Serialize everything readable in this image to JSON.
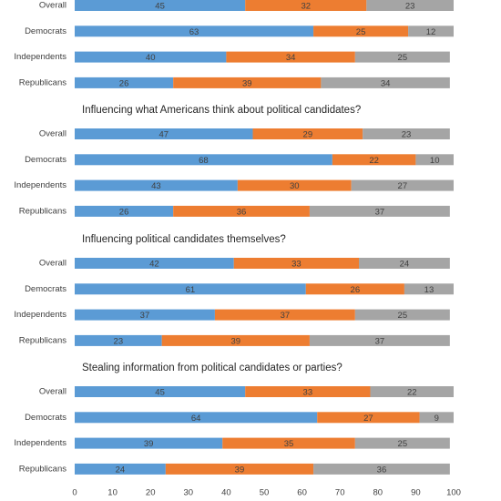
{
  "chart_data": [
    {
      "type": "bar",
      "orientation": "horizontal",
      "stacked": true,
      "categories": [
        "Overall",
        "Democrats",
        "Independents",
        "Republicans"
      ],
      "series": [
        {
          "color": "#5b9bd5",
          "values": [
            45,
            63,
            40,
            26
          ]
        },
        {
          "color": "#ed7d31",
          "values": [
            32,
            25,
            34,
            39
          ]
        },
        {
          "color": "#a5a5a5",
          "values": [
            23,
            12,
            25,
            34
          ]
        }
      ],
      "xlim": [
        0,
        100
      ]
    },
    {
      "type": "bar",
      "orientation": "horizontal",
      "stacked": true,
      "title": "Influencing what Americans think about political candidates?",
      "categories": [
        "Overall",
        "Democrats",
        "Independents",
        "Republicans"
      ],
      "series": [
        {
          "color": "#5b9bd5",
          "values": [
            47,
            68,
            43,
            26
          ]
        },
        {
          "color": "#ed7d31",
          "values": [
            29,
            22,
            30,
            36
          ]
        },
        {
          "color": "#a5a5a5",
          "values": [
            23,
            10,
            27,
            37
          ]
        }
      ],
      "xlim": [
        0,
        100
      ]
    },
    {
      "type": "bar",
      "orientation": "horizontal",
      "stacked": true,
      "title": "Influencing political candidates themselves?",
      "categories": [
        "Overall",
        "Democrats",
        "Independents",
        "Republicans"
      ],
      "series": [
        {
          "color": "#5b9bd5",
          "values": [
            42,
            61,
            37,
            23
          ]
        },
        {
          "color": "#ed7d31",
          "values": [
            33,
            26,
            37,
            39
          ]
        },
        {
          "color": "#a5a5a5",
          "values": [
            24,
            13,
            25,
            37
          ]
        }
      ],
      "xlim": [
        0,
        100
      ]
    },
    {
      "type": "bar",
      "orientation": "horizontal",
      "stacked": true,
      "title": "Stealing information from political candidates or parties?",
      "categories": [
        "Overall",
        "Democrats",
        "Independents",
        "Republicans"
      ],
      "series": [
        {
          "color": "#5b9bd5",
          "values": [
            45,
            64,
            39,
            24
          ]
        },
        {
          "color": "#ed7d31",
          "values": [
            33,
            27,
            35,
            39
          ]
        },
        {
          "color": "#a5a5a5",
          "values": [
            22,
            9,
            25,
            36
          ]
        }
      ],
      "xlim": [
        0,
        100
      ],
      "xticks": [
        0,
        10,
        20,
        30,
        40,
        50,
        60,
        70,
        80,
        90,
        100
      ]
    }
  ]
}
